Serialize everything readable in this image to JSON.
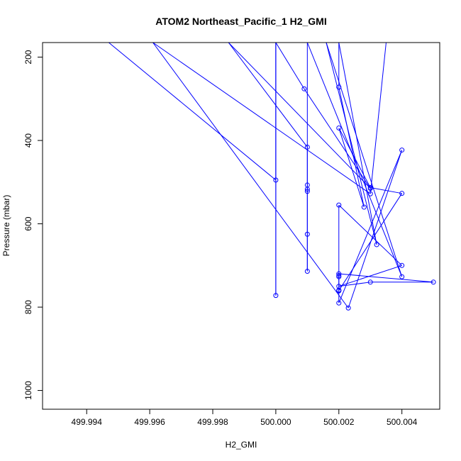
{
  "chart_data": {
    "type": "line",
    "title": "ATOM2 Northeast_Pacific_1 H2_GMI",
    "xlabel": "H2_GMI",
    "ylabel": "Pressure (mbar)",
    "xlim": [
      499.9926,
      500.0052
    ],
    "ylim": [
      1045,
      165
    ],
    "y_inverted": true,
    "x_ticks": [
      499.994,
      499.996,
      499.998,
      500.0,
      500.002,
      500.004
    ],
    "x_tick_labels": [
      "499.994",
      "499.996",
      "499.998",
      "500.000",
      "500.002",
      "500.004"
    ],
    "y_ticks": [
      200,
      400,
      600,
      800,
      1000
    ],
    "y_tick_labels": [
      "200",
      "400",
      "600",
      "800",
      "1000"
    ],
    "grid": false,
    "legend": "none",
    "line_color": "#0000ff",
    "marker": "open-circle",
    "series": [
      {
        "points": [
          [
            499.9947,
            165
          ],
          [
            500.0,
            495
          ],
          [
            500.0,
            165
          ],
          [
            500.0,
            772
          ],
          [
            500.0,
            165
          ],
          [
            500.0009,
            276
          ],
          [
            500.003,
            515
          ],
          [
            499.9985,
            165
          ],
          [
            500.001,
            416
          ],
          [
            500.001,
            507
          ],
          [
            500.001,
            517
          ],
          [
            500.001,
            522
          ],
          [
            500.001,
            625
          ],
          [
            500.001,
            714
          ],
          [
            500.001,
            165
          ],
          [
            500.004,
            727
          ],
          [
            500.0016,
            165
          ],
          [
            500.0032,
            650
          ],
          [
            500.002,
            165
          ],
          [
            500.002,
            272
          ],
          [
            500.0028,
            560
          ],
          [
            500.002,
            370
          ],
          [
            500.003,
            513
          ],
          [
            500.004,
            527
          ],
          [
            500.002,
            760
          ],
          [
            500.002,
            761
          ],
          [
            500.002,
            759
          ],
          [
            500.002,
            727
          ],
          [
            500.002,
            724
          ],
          [
            500.002,
            555
          ],
          [
            500.004,
            700
          ],
          [
            500.002,
            750
          ],
          [
            500.003,
            740
          ],
          [
            500.005,
            740
          ],
          [
            500.002,
            720
          ],
          [
            500.002,
            790
          ],
          [
            500.004,
            423
          ],
          [
            500.0023,
            802
          ],
          [
            499.9961,
            165
          ],
          [
            500.003,
            528
          ],
          [
            500.0035,
            165
          ]
        ]
      }
    ]
  }
}
